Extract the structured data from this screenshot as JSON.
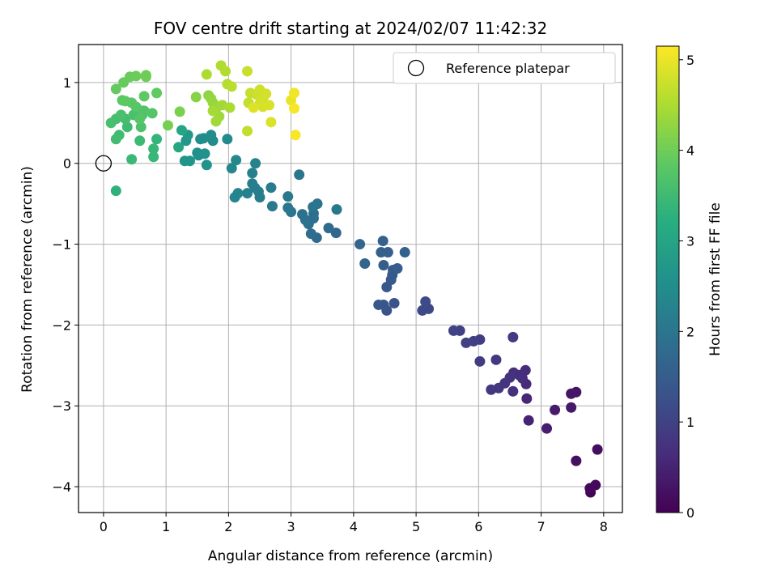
{
  "chart_data": {
    "type": "scatter",
    "title": "FOV centre drift starting at 2024/02/07 11:42:32",
    "xlabel": "Angular distance from reference (arcmin)",
    "ylabel": "Rotation from reference (arcmin)",
    "xlim": [
      -0.4,
      8.3
    ],
    "ylim": [
      -4.32,
      1.47
    ],
    "xticks": [
      0,
      1,
      2,
      3,
      4,
      5,
      6,
      7,
      8
    ],
    "xtick_labels": [
      "0",
      "1",
      "2",
      "3",
      "4",
      "5",
      "6",
      "7",
      "8"
    ],
    "yticks": [
      1,
      0,
      -1,
      -2,
      -3,
      -4
    ],
    "ytick_labels": [
      "1",
      "0",
      "−1",
      "−2",
      "−3",
      "−4"
    ],
    "grid": true,
    "colormap": "viridis",
    "colorbar": {
      "label": "Hours from first FF file",
      "range": [
        0,
        5.15
      ],
      "ticks": [
        0,
        1,
        2,
        3,
        4,
        5
      ],
      "tick_labels": [
        "0",
        "1",
        "2",
        "3",
        "4",
        "5"
      ]
    },
    "reference_marker": {
      "label": "Reference platepar",
      "x": 0,
      "y": 0,
      "style": "open circle"
    },
    "legend": {
      "placement": "top-right",
      "entries": [
        "Reference platepar"
      ]
    },
    "points": [
      [
        7.79,
        -4.07,
        0.05
      ],
      [
        7.78,
        -4.02,
        0.1
      ],
      [
        7.87,
        -3.98,
        0.12
      ],
      [
        7.9,
        -3.54,
        0.18
      ],
      [
        7.56,
        -3.68,
        0.22
      ],
      [
        7.56,
        -2.83,
        0.28
      ],
      [
        7.48,
        -2.85,
        0.3
      ],
      [
        7.48,
        -3.02,
        0.33
      ],
      [
        7.22,
        -3.05,
        0.38
      ],
      [
        7.09,
        -3.28,
        0.42
      ],
      [
        6.8,
        -3.18,
        0.5
      ],
      [
        6.77,
        -2.91,
        0.55
      ],
      [
        6.76,
        -2.73,
        0.6
      ],
      [
        6.75,
        -2.56,
        0.63
      ],
      [
        6.7,
        -2.66,
        0.66
      ],
      [
        6.65,
        -2.62,
        0.68
      ],
      [
        6.56,
        -2.59,
        0.7
      ],
      [
        6.55,
        -2.82,
        0.72
      ],
      [
        6.5,
        -2.65,
        0.75
      ],
      [
        6.42,
        -2.72,
        0.78
      ],
      [
        6.32,
        -2.78,
        0.8
      ],
      [
        6.2,
        -2.8,
        0.82
      ],
      [
        6.28,
        -2.43,
        0.85
      ],
      [
        6.55,
        -2.15,
        0.88
      ],
      [
        6.02,
        -2.45,
        0.9
      ],
      [
        6.02,
        -2.18,
        0.92
      ],
      [
        5.92,
        -2.2,
        0.95
      ],
      [
        5.8,
        -2.22,
        0.97
      ],
      [
        5.7,
        -2.07,
        1.0
      ],
      [
        5.6,
        -2.07,
        1.02
      ],
      [
        5.2,
        -1.8,
        1.12
      ],
      [
        5.1,
        -1.82,
        1.15
      ],
      [
        5.15,
        -1.71,
        1.18
      ],
      [
        4.65,
        -1.73,
        1.3
      ],
      [
        4.53,
        -1.82,
        1.33
      ],
      [
        4.48,
        -1.75,
        1.36
      ],
      [
        4.4,
        -1.75,
        1.38
      ],
      [
        4.53,
        -1.53,
        1.4
      ],
      [
        4.6,
        -1.44,
        1.43
      ],
      [
        4.62,
        -1.38,
        1.45
      ],
      [
        4.63,
        -1.32,
        1.47
      ],
      [
        4.7,
        -1.3,
        1.5
      ],
      [
        4.48,
        -1.26,
        1.52
      ],
      [
        4.55,
        -1.1,
        1.55
      ],
      [
        4.44,
        -1.1,
        1.57
      ],
      [
        4.47,
        -0.96,
        1.6
      ],
      [
        4.82,
        -1.1,
        1.62
      ],
      [
        4.18,
        -1.24,
        1.65
      ],
      [
        4.1,
        -1.0,
        1.68
      ],
      [
        3.72,
        -0.86,
        1.75
      ],
      [
        3.6,
        -0.8,
        1.78
      ],
      [
        3.41,
        -0.92,
        1.8
      ],
      [
        3.32,
        -0.87,
        1.82
      ],
      [
        3.28,
        -0.75,
        1.85
      ],
      [
        3.36,
        -0.68,
        1.87
      ],
      [
        3.36,
        -0.62,
        1.9
      ],
      [
        3.18,
        -0.63,
        1.92
      ],
      [
        3.23,
        -0.7,
        1.94
      ],
      [
        3.42,
        -0.5,
        1.96
      ],
      [
        3.35,
        -0.54,
        1.98
      ],
      [
        3.13,
        -0.14,
        2.0
      ],
      [
        3.0,
        -0.6,
        2.02
      ],
      [
        2.95,
        -0.55,
        2.04
      ],
      [
        2.95,
        -0.41,
        2.06
      ],
      [
        3.73,
        -0.57,
        2.08
      ],
      [
        2.7,
        -0.53,
        2.1
      ],
      [
        2.68,
        -0.3,
        2.12
      ],
      [
        2.5,
        -0.42,
        2.15
      ],
      [
        2.48,
        -0.35,
        2.17
      ],
      [
        2.42,
        -0.3,
        2.19
      ],
      [
        2.38,
        -0.25,
        2.21
      ],
      [
        2.3,
        -0.37,
        2.23
      ],
      [
        2.38,
        -0.12,
        2.25
      ],
      [
        2.43,
        0.0,
        2.27
      ],
      [
        2.15,
        -0.37,
        2.3
      ],
      [
        2.1,
        -0.42,
        2.33
      ],
      [
        2.05,
        -0.06,
        2.36
      ],
      [
        2.12,
        0.04,
        2.38
      ],
      [
        1.98,
        0.3,
        2.42
      ],
      [
        1.75,
        0.28,
        2.45
      ],
      [
        1.72,
        0.35,
        2.48
      ],
      [
        1.6,
        0.31,
        2.5
      ],
      [
        1.55,
        0.3,
        2.52
      ],
      [
        1.5,
        0.13,
        2.55
      ],
      [
        1.52,
        0.1,
        2.57
      ],
      [
        1.62,
        0.12,
        2.6
      ],
      [
        1.65,
        -0.02,
        2.62
      ],
      [
        1.38,
        0.03,
        2.65
      ],
      [
        1.3,
        0.03,
        2.67
      ],
      [
        1.32,
        0.28,
        2.7
      ],
      [
        1.35,
        0.35,
        2.72
      ],
      [
        1.25,
        0.41,
        3.0
      ],
      [
        1.2,
        0.2,
        3.05
      ],
      [
        0.2,
        -0.34,
        3.3
      ],
      [
        0.85,
        0.3,
        3.35
      ],
      [
        0.8,
        0.08,
        3.4
      ],
      [
        0.8,
        0.18,
        3.42
      ],
      [
        0.45,
        0.05,
        3.45
      ],
      [
        0.58,
        0.28,
        3.48
      ],
      [
        0.38,
        0.45,
        3.5
      ],
      [
        0.25,
        0.35,
        3.52
      ],
      [
        0.2,
        0.3,
        3.54
      ],
      [
        0.35,
        0.55,
        3.56
      ],
      [
        0.2,
        0.55,
        3.58
      ],
      [
        0.12,
        0.5,
        3.6
      ],
      [
        0.28,
        0.6,
        3.62
      ],
      [
        0.48,
        0.6,
        3.64
      ],
      [
        0.62,
        0.6,
        3.66
      ],
      [
        0.6,
        0.45,
        3.68
      ],
      [
        0.62,
        0.65,
        3.7
      ],
      [
        0.65,
        0.65,
        3.72
      ],
      [
        0.78,
        0.62,
        3.74
      ],
      [
        0.58,
        0.55,
        3.76
      ],
      [
        0.52,
        0.7,
        3.78
      ],
      [
        0.45,
        0.75,
        3.8
      ],
      [
        0.3,
        0.78,
        3.82
      ],
      [
        0.35,
        0.77,
        3.84
      ],
      [
        0.65,
        0.83,
        3.86
      ],
      [
        0.85,
        0.87,
        3.88
      ],
      [
        0.2,
        0.92,
        3.9
      ],
      [
        0.32,
        1.0,
        3.92
      ],
      [
        0.42,
        1.07,
        3.94
      ],
      [
        0.52,
        1.08,
        3.96
      ],
      [
        0.68,
        1.07,
        3.98
      ],
      [
        0.68,
        1.09,
        4.0
      ],
      [
        1.03,
        0.47,
        4.05
      ],
      [
        1.22,
        0.64,
        4.1
      ],
      [
        1.48,
        0.82,
        4.2
      ],
      [
        1.68,
        0.84,
        4.25
      ],
      [
        1.72,
        0.8,
        4.3
      ],
      [
        1.75,
        0.75,
        4.32
      ],
      [
        1.82,
        0.7,
        4.35
      ],
      [
        1.85,
        0.58,
        4.38
      ],
      [
        1.8,
        0.52,
        4.4
      ],
      [
        1.9,
        0.72,
        4.42
      ],
      [
        1.75,
        0.65,
        4.45
      ],
      [
        2.02,
        0.69,
        4.48
      ],
      [
        1.65,
        1.1,
        4.5
      ],
      [
        1.88,
        1.21,
        4.52
      ],
      [
        1.95,
        1.14,
        4.55
      ],
      [
        1.98,
        0.98,
        4.57
      ],
      [
        2.05,
        0.95,
        4.6
      ],
      [
        2.3,
        0.4,
        4.65
      ],
      [
        2.32,
        0.75,
        4.67
      ],
      [
        2.35,
        0.87,
        4.7
      ],
      [
        2.3,
        1.14,
        4.72
      ],
      [
        2.45,
        0.85,
        4.74
      ],
      [
        2.5,
        0.91,
        4.76
      ],
      [
        2.55,
        0.8,
        4.78
      ],
      [
        2.5,
        0.74,
        4.8
      ],
      [
        2.6,
        0.86,
        4.82
      ],
      [
        2.55,
        0.7,
        4.84
      ],
      [
        2.65,
        0.72,
        4.86
      ],
      [
        2.68,
        0.51,
        4.88
      ],
      [
        2.4,
        0.69,
        4.9
      ],
      [
        3.0,
        0.78,
        5.0
      ],
      [
        3.05,
        0.87,
        5.05
      ],
      [
        3.05,
        0.68,
        5.1
      ],
      [
        3.07,
        0.35,
        5.12
      ]
    ]
  }
}
